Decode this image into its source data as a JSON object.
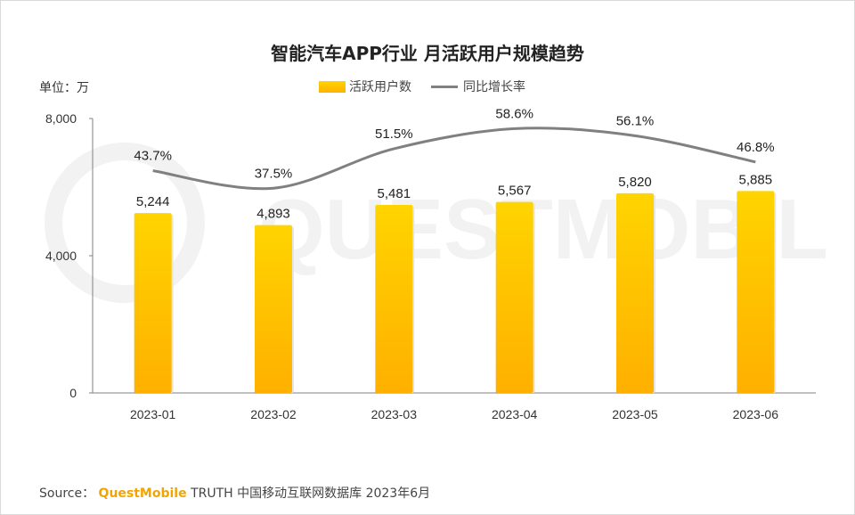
{
  "title": "智能汽车APP行业 月活跃用户规模趋势",
  "unit_label": "单位：万",
  "legend": {
    "bar": "活跃用户数",
    "line": "同比增长率"
  },
  "source": {
    "prefix": "Source：",
    "brand": "QuestMobile",
    "rest": " TRUTH 中国移动互联网数据库 2023年6月"
  },
  "watermark": "QUESTMOBILE",
  "colors": {
    "bar_top": "#ffd400",
    "bar_bottom": "#ffb000",
    "line": "#808080",
    "brand": "#f2a500"
  },
  "chart_data": {
    "type": "bar",
    "categories": [
      "2023-01",
      "2023-02",
      "2023-03",
      "2023-04",
      "2023-05",
      "2023-06"
    ],
    "series": [
      {
        "name": "活跃用户数",
        "type": "bar",
        "values": [
          5244,
          4893,
          5481,
          5567,
          5820,
          5885
        ],
        "labels": [
          "5,244",
          "4,893",
          "5,481",
          "5,567",
          "5,820",
          "5,885"
        ]
      },
      {
        "name": "同比增长率",
        "type": "line",
        "values": [
          43.7,
          37.5,
          51.5,
          58.6,
          56.1,
          46.8
        ],
        "labels": [
          "43.7%",
          "37.5%",
          "51.5%",
          "58.6%",
          "56.1%",
          "46.8%"
        ]
      }
    ],
    "y_ticks": [
      "0",
      "4,000",
      "8,000"
    ],
    "ylim": [
      0,
      8000
    ],
    "grid": false,
    "legend_position": "top-center"
  }
}
